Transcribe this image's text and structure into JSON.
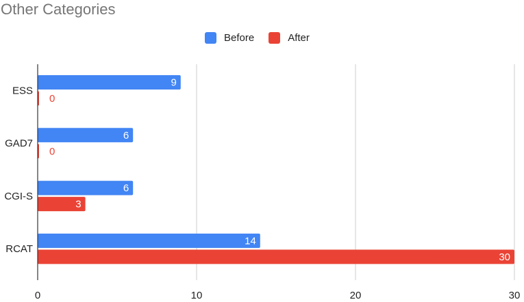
{
  "chart_data": {
    "type": "bar",
    "orientation": "horizontal",
    "title": "Other Categories",
    "categories": [
      "ESS",
      "GAD7",
      "CGI-S",
      "RCAT"
    ],
    "series": [
      {
        "name": "Before",
        "color": "#4285F4",
        "values": [
          9,
          6,
          6,
          14
        ]
      },
      {
        "name": "After",
        "color": "#EA4335",
        "values": [
          0,
          0,
          3,
          30
        ]
      }
    ],
    "xlim": [
      0,
      30
    ],
    "x_ticks": [
      0,
      10,
      20,
      30
    ],
    "grid": true,
    "legend_position": "top",
    "data_labels": true
  }
}
